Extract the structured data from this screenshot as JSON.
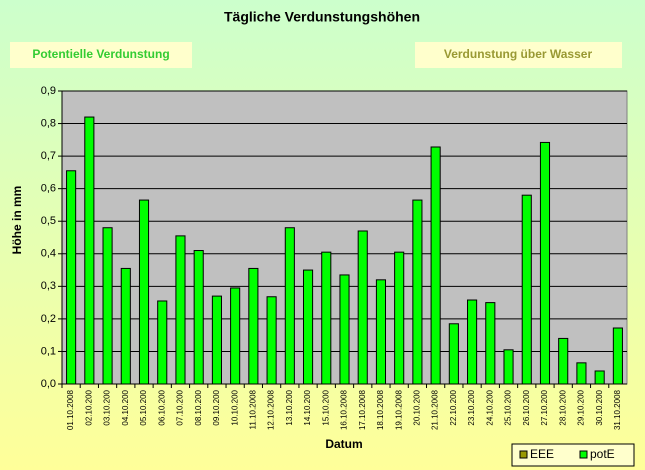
{
  "chart_data": {
    "type": "bar",
    "title": "Tägliche Verdunstungshöhen",
    "annotations": [
      "Potentielle Verdunstung",
      "Verdunstung über Wasser"
    ],
    "x_label": "Datum",
    "y_label": "Höhe in mm",
    "categories": [
      "01.10.2008",
      "02.10.200",
      "03.10.200",
      "04.10.200",
      "05.10.200",
      "06.10.200",
      "07.10.200",
      "08.10.200",
      "09.10.200",
      "10.10.200",
      "11.10.2008",
      "12.10.2008",
      "13.10.200",
      "14.10.200",
      "15.10.200",
      "16.10.2008",
      "17.10.2008",
      "18.10.2008",
      "19.10.2008",
      "20.10.200",
      "21.10.2008",
      "22.10.200",
      "23.10.200",
      "24.10.200",
      "25.10.200",
      "26.10.200",
      "27.10.200",
      "28.10.200",
      "29.10.200",
      "30.10.200",
      "31.10.2008"
    ],
    "series": [
      {
        "name": "EEE",
        "color": "#999900",
        "values": [
          null,
          null,
          null,
          null,
          null,
          null,
          null,
          null,
          null,
          null,
          null,
          null,
          null,
          null,
          null,
          null,
          null,
          null,
          null,
          null,
          null,
          null,
          null,
          null,
          null,
          null,
          null,
          null,
          null,
          null,
          null
        ]
      },
      {
        "name": "potE",
        "color": "#00ff00",
        "values": [
          0.655,
          0.82,
          0.48,
          0.355,
          0.565,
          0.255,
          0.455,
          0.41,
          0.27,
          0.295,
          0.355,
          0.268,
          0.48,
          0.35,
          0.405,
          0.335,
          0.47,
          0.32,
          0.405,
          0.565,
          0.728,
          0.185,
          0.258,
          0.25,
          0.105,
          0.58,
          0.742,
          0.14,
          0.065,
          0.04,
          0.172
        ]
      }
    ],
    "ylim": [
      0,
      0.9
    ],
    "yticks": [
      {
        "value": 0,
        "label": "0,0"
      },
      {
        "value": 0.1,
        "label": "0,1"
      },
      {
        "value": 0.2,
        "label": "0,2"
      },
      {
        "value": 0.3,
        "label": "0,3"
      },
      {
        "value": 0.4,
        "label": "0,4"
      },
      {
        "value": 0.5,
        "label": "0,5"
      },
      {
        "value": 0.6,
        "label": "0,6"
      },
      {
        "value": 0.7,
        "label": "0,7"
      },
      {
        "value": 0.8,
        "label": "0,8"
      },
      {
        "value": 0.9,
        "label": "0,9"
      }
    ],
    "grid": true,
    "legend": "bottom-right"
  }
}
